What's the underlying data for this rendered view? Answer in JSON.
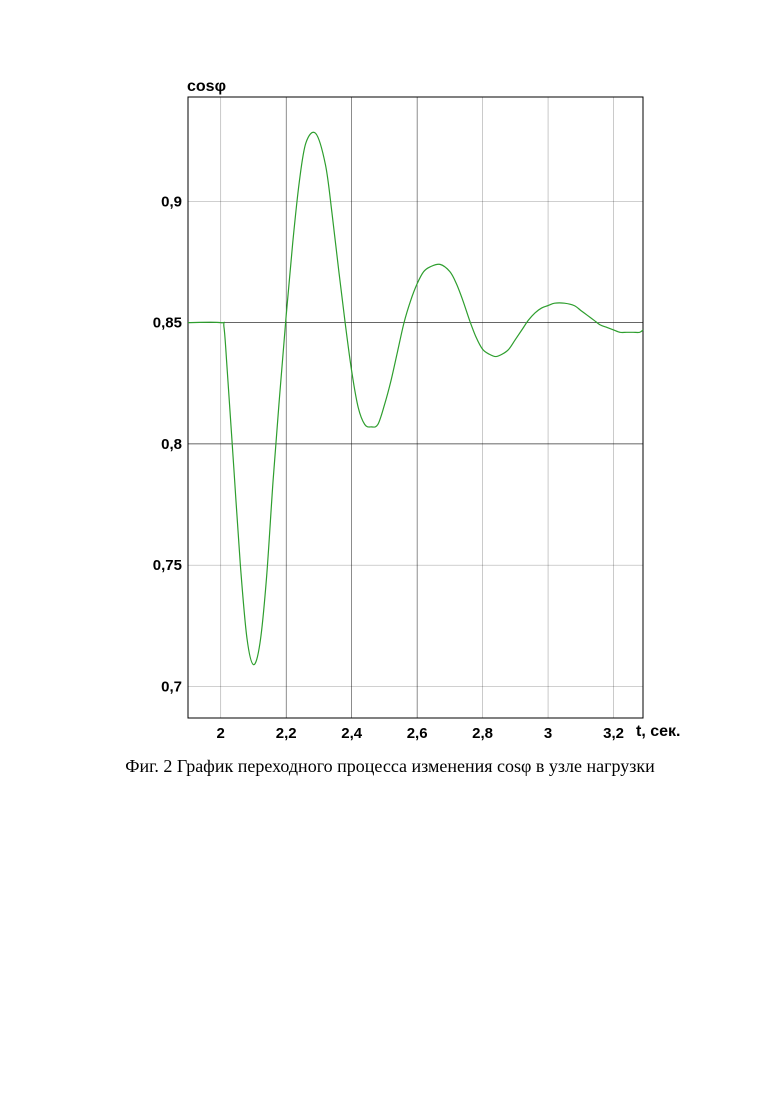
{
  "figure_caption": "Фиг. 2 График переходного процесса изменения cosφ в узле нагрузки",
  "chart_data": {
    "type": "line",
    "ylabel": "cosφ",
    "xlabel": "t, сек.",
    "xlim": [
      1.9,
      3.29
    ],
    "ylim": [
      0.687,
      0.943
    ],
    "x_ticks": [
      2,
      2.2,
      2.4,
      2.6,
      2.8,
      3,
      3.2
    ],
    "x_tick_labels": [
      "2",
      "2,2",
      "2,4",
      "2,6",
      "2,8",
      "3",
      "3,2"
    ],
    "y_ticks": [
      0.7,
      0.75,
      0.8,
      0.85,
      0.9
    ],
    "y_tick_labels": [
      "0,7",
      "0,75",
      "0,8",
      "0,85",
      "0,9"
    ],
    "grid": true,
    "colors": {
      "line": "#2e9e2e",
      "grid": "#000000",
      "axes": "#000000"
    },
    "series": [
      {
        "x": [
          1.9,
          2.0,
          2.01,
          2.02,
          2.04,
          2.06,
          2.08,
          2.1,
          2.12,
          2.14,
          2.16,
          2.18,
          2.2,
          2.22,
          2.24,
          2.26,
          2.29,
          2.32,
          2.34,
          2.36,
          2.38,
          2.4,
          2.42,
          2.44,
          2.46,
          2.48,
          2.5,
          2.52,
          2.54,
          2.56,
          2.58,
          2.6,
          2.62,
          2.64,
          2.67,
          2.7,
          2.72,
          2.74,
          2.76,
          2.78,
          2.8,
          2.82,
          2.84,
          2.86,
          2.88,
          2.9,
          2.92,
          2.94,
          2.96,
          2.98,
          3.0,
          3.02,
          3.05,
          3.08,
          3.1,
          3.12,
          3.14,
          3.16,
          3.18,
          3.2,
          3.22,
          3.24,
          3.26,
          3.28,
          3.29
        ],
        "y": [
          0.85,
          0.85,
          0.848,
          0.83,
          0.79,
          0.75,
          0.72,
          0.709,
          0.718,
          0.745,
          0.785,
          0.82,
          0.853,
          0.883,
          0.908,
          0.924,
          0.928,
          0.915,
          0.895,
          0.872,
          0.85,
          0.83,
          0.815,
          0.808,
          0.807,
          0.808,
          0.816,
          0.826,
          0.838,
          0.85,
          0.859,
          0.866,
          0.871,
          0.873,
          0.874,
          0.871,
          0.866,
          0.859,
          0.851,
          0.844,
          0.839,
          0.837,
          0.836,
          0.837,
          0.839,
          0.843,
          0.847,
          0.851,
          0.854,
          0.856,
          0.857,
          0.858,
          0.858,
          0.857,
          0.855,
          0.853,
          0.851,
          0.849,
          0.848,
          0.847,
          0.846,
          0.846,
          0.846,
          0.846,
          0.847
        ]
      }
    ]
  }
}
